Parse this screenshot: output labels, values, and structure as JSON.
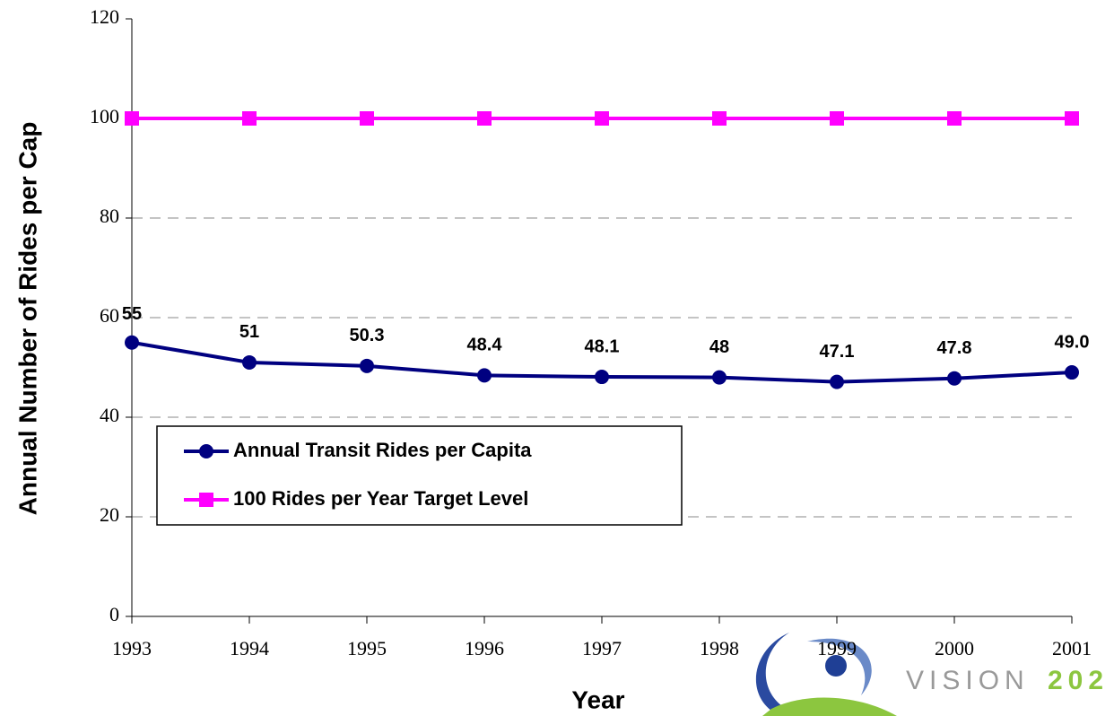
{
  "chart_data": {
    "type": "line",
    "xlabel": "Year",
    "ylabel": "Annual Number of Rides per Cap",
    "categories": [
      "1993",
      "1994",
      "1995",
      "1996",
      "1997",
      "1998",
      "1999",
      "2000",
      "2001"
    ],
    "series": [
      {
        "name": "Annual Transit Rides per Capita",
        "color": "#000080",
        "marker": "circle",
        "values": [
          55,
          51,
          50.3,
          48.4,
          48.1,
          48,
          47.1,
          47.8,
          49.0
        ],
        "value_labels": [
          "55",
          "51",
          "50.3",
          "48.4",
          "48.1",
          "48",
          "47.1",
          "47.8",
          "49.0"
        ]
      },
      {
        "name": "100 Rides per Year Target Level",
        "color": "#ff00ff",
        "marker": "square",
        "values": [
          100,
          100,
          100,
          100,
          100,
          100,
          100,
          100,
          100
        ]
      }
    ],
    "ylim": [
      0,
      120
    ],
    "yticks": [
      0,
      20,
      40,
      60,
      80,
      100,
      120
    ],
    "grid": true,
    "legend": "lower left"
  },
  "logo": {
    "word": "VISION",
    "number": "202"
  }
}
